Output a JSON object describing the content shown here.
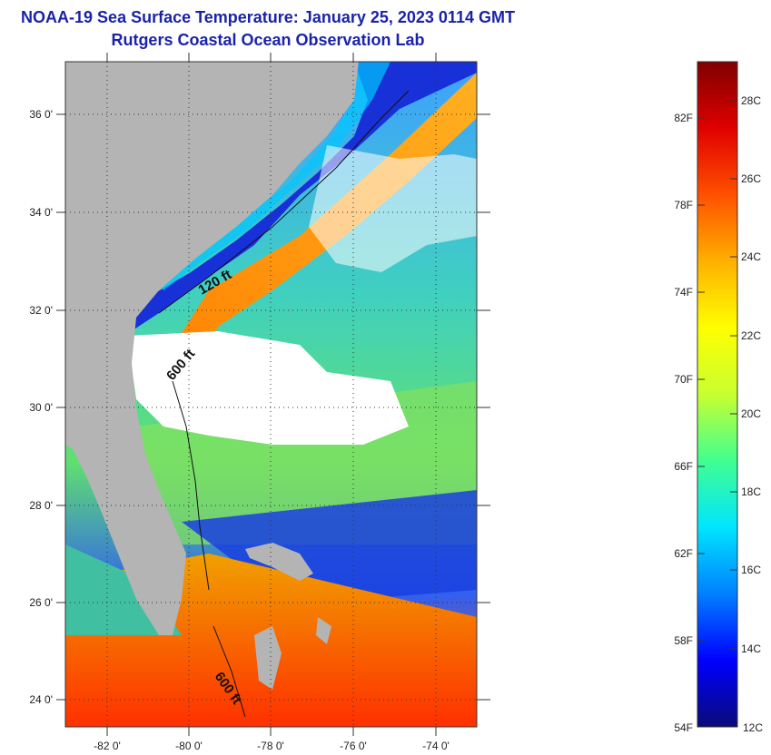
{
  "header": {
    "title": "NOAA-19 Sea Surface Temperature:  January 25, 2023 0114 GMT",
    "subtitle": "Rutgers Coastal Ocean Observation Lab"
  },
  "map": {
    "lat_labels": [
      "36 0'",
      "34 0'",
      "32 0'",
      "30 0'",
      "28 0'",
      "26 0'",
      "24 0'"
    ],
    "lon_labels": [
      "-82 0'",
      "-80 0'",
      "-78 0'",
      "-76 0'",
      "-74 0'"
    ],
    "contours": [
      "120 ft",
      "600 ft",
      "600 ft"
    ],
    "colors": {
      "land": "#b4b4b4",
      "cloud": "#ffffff",
      "frame": "#333333"
    }
  },
  "colorbar": {
    "f_labels": [
      "82F",
      "78F",
      "74F",
      "70F",
      "66F",
      "62F",
      "58F",
      "54F"
    ],
    "c_labels": [
      "28C",
      "26C",
      "24C",
      "22C",
      "20C",
      "18C",
      "16C",
      "14C",
      "12C"
    ],
    "colors": [
      "#0a0a7a",
      "#0000ff",
      "#0080ff",
      "#00e5ff",
      "#40ff90",
      "#c8ff30",
      "#ffff00",
      "#ffb000",
      "#ff5000",
      "#e00000",
      "#800000"
    ]
  }
}
